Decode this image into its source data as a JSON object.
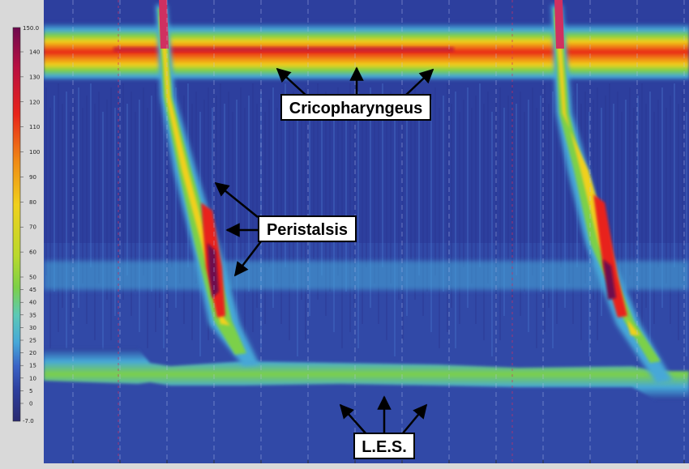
{
  "chart_data": {
    "type": "heatmap",
    "title": "",
    "xlabel": "",
    "ylabel": "",
    "colorbar": {
      "min_label": "-7.0",
      "max_label": "150.0",
      "range": [
        -7,
        150
      ],
      "ticks": [
        0,
        5,
        10,
        15,
        20,
        25,
        30,
        35,
        40,
        45,
        50,
        60,
        70,
        80,
        90,
        100,
        110,
        120,
        130,
        140
      ],
      "colors": [
        "#2a2a70",
        "#2d3f9e",
        "#3a63c6",
        "#46a8d8",
        "#5cc9b6",
        "#7cd048",
        "#b9d92c",
        "#f0d01c",
        "#f08a14",
        "#e8241a",
        "#b80f42",
        "#6e0a4e"
      ]
    },
    "bands": [
      {
        "name": "Cricopharyngeus",
        "value_range": [
          110,
          150
        ]
      },
      {
        "name": "Peristalsis",
        "value_range": [
          60,
          150
        ]
      },
      {
        "name": "L.E.S.",
        "value_range": [
          25,
          40
        ]
      }
    ],
    "swallows": 2
  },
  "annotations": {
    "cricopharyngeus": "Cricopharyngeus",
    "peristalsis": "Peristalsis",
    "les": "L.E.S."
  },
  "colors": {
    "background_blue": "#2d3f9e",
    "label_border": "#000000",
    "label_fill": "#ffffff",
    "marker_red": "#d03060"
  }
}
